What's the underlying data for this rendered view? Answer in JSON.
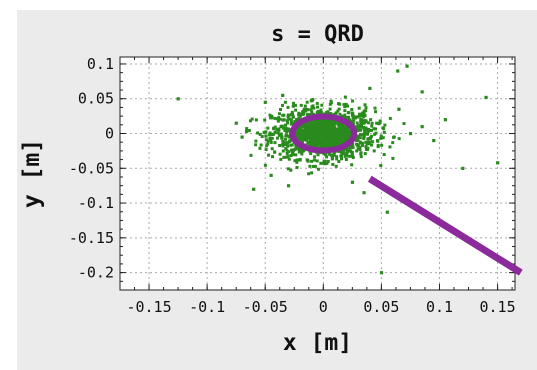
{
  "chart_data": {
    "type": "scatter",
    "title": "s = QRD",
    "xlabel": "x [m]",
    "ylabel": "y [m]",
    "xlim": [
      -0.175,
      0.165
    ],
    "ylim": [
      -0.225,
      0.11
    ],
    "xticks": [
      -0.15,
      -0.1,
      -0.05,
      0,
      0.05,
      0.1,
      0.15
    ],
    "xtick_labels": [
      "-0.15",
      "-0.1",
      "-0.05",
      "0",
      "0.05",
      "0.1",
      "0.15"
    ],
    "yticks": [
      0.1,
      0.05,
      0,
      -0.05,
      -0.1,
      -0.15,
      -0.2
    ],
    "ytick_labels": [
      "0.1",
      "0.05",
      "0",
      "-0.05",
      "-0.1",
      "-0.15",
      "-0.2"
    ],
    "grid": true,
    "colors": {
      "particles": "#2a8a1e",
      "ellipse": "#8b2a9a",
      "panel": "#ebebeb"
    },
    "series": [
      {
        "kind": "particles",
        "center": [
          0.0,
          0.0
        ],
        "sigma": [
          0.022,
          0.018
        ],
        "count": 1400,
        "outliers": [
          [
            0.072,
            0.097
          ],
          [
            0.064,
            0.09
          ],
          [
            -0.125,
            0.05
          ],
          [
            0.14,
            0.052
          ],
          [
            0.15,
            -0.042
          ],
          [
            0.055,
            -0.113
          ],
          [
            0.085,
            0.01
          ],
          [
            0.075,
            -0.0
          ],
          [
            -0.07,
            -0.005
          ],
          [
            0.12,
            -0.05
          ],
          [
            0.05,
            -0.2
          ],
          [
            -0.06,
            -0.08
          ],
          [
            -0.035,
            0.055
          ],
          [
            0.04,
            0.065
          ],
          [
            0.065,
            0.035
          ],
          [
            0.095,
            -0.01
          ],
          [
            0.035,
            -0.085
          ],
          [
            -0.075,
            0.015
          ],
          [
            -0.045,
            -0.06
          ],
          [
            0.085,
            0.06
          ],
          [
            -0.05,
            0.045
          ],
          [
            0.025,
            -0.07
          ],
          [
            0.105,
            0.02
          ],
          [
            -0.03,
            -0.075
          ]
        ]
      },
      {
        "kind": "ellipse",
        "center": [
          0.0,
          0.0
        ],
        "rx": 0.0265,
        "ry": 0.0245
      },
      {
        "kind": "line",
        "x": [
          0.04,
          0.17
        ],
        "y": [
          -0.065,
          -0.2
        ]
      }
    ]
  }
}
